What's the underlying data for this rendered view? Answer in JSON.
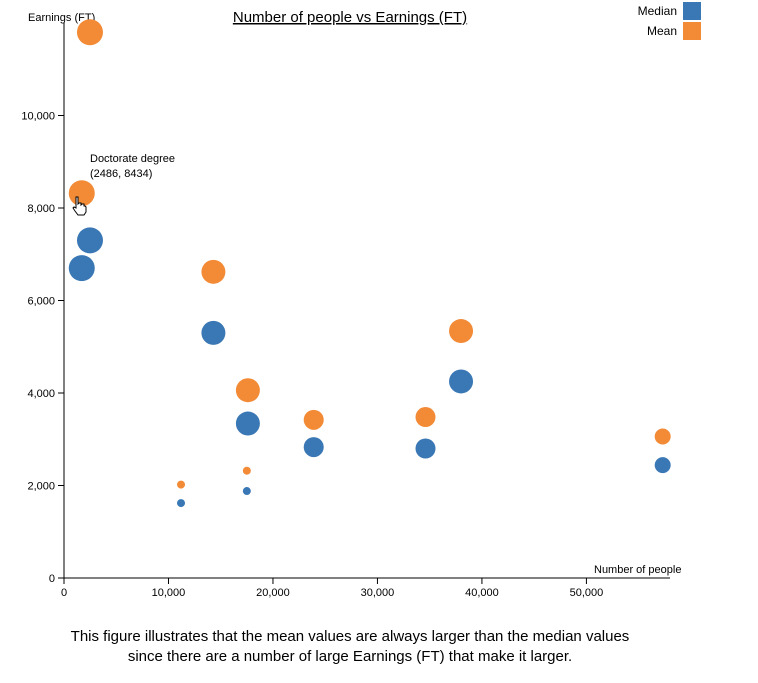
{
  "chart_data": {
    "type": "scatter",
    "title": "Number of people vs Earnings (FT)",
    "xlabel": "Number of people",
    "ylabel": "Earnings (FT)",
    "xlim": [
      0,
      58000
    ],
    "ylim": [
      0,
      12000
    ],
    "x_ticks": [
      0,
      10000,
      20000,
      30000,
      40000,
      50000
    ],
    "x_tick_labels": [
      "0",
      "10,000",
      "20,000",
      "30,000",
      "40,000",
      "50,000"
    ],
    "y_ticks": [
      0,
      2000,
      4000,
      6000,
      8000,
      10000
    ],
    "y_tick_labels": [
      "0",
      "2,000",
      "4,000",
      "6,000",
      "8,000",
      "10,000"
    ],
    "grid": false,
    "legend_position": "top-right",
    "series": [
      {
        "name": "Median",
        "color": "#3a78b5",
        "points": [
          {
            "x": 1700,
            "y": 6700,
            "r": 13
          },
          {
            "x": 2486,
            "y": 7300,
            "r": 13
          },
          {
            "x": 11200,
            "y": 1620,
            "r": 4
          },
          {
            "x": 14300,
            "y": 5300,
            "r": 12
          },
          {
            "x": 17500,
            "y": 1880,
            "r": 4
          },
          {
            "x": 17600,
            "y": 3340,
            "r": 12
          },
          {
            "x": 23900,
            "y": 2830,
            "r": 10
          },
          {
            "x": 34600,
            "y": 2800,
            "r": 10
          },
          {
            "x": 38000,
            "y": 4250,
            "r": 12
          },
          {
            "x": 57300,
            "y": 2440,
            "r": 8
          }
        ]
      },
      {
        "name": "Mean",
        "color": "#f28a36",
        "points": [
          {
            "x": 1700,
            "y": 8320,
            "r": 13
          },
          {
            "x": 2486,
            "y": 11800,
            "r": 13
          },
          {
            "x": 11200,
            "y": 2020,
            "r": 4
          },
          {
            "x": 14300,
            "y": 6620,
            "r": 12
          },
          {
            "x": 17500,
            "y": 2320,
            "r": 4
          },
          {
            "x": 17600,
            "y": 4060,
            "r": 12
          },
          {
            "x": 23900,
            "y": 3420,
            "r": 10
          },
          {
            "x": 34600,
            "y": 3480,
            "r": 10
          },
          {
            "x": 38000,
            "y": 5340,
            "r": 12
          },
          {
            "x": 57300,
            "y": 3060,
            "r": 8
          }
        ]
      }
    ],
    "tooltip": {
      "label": "Doctorate degree",
      "coords": "(2486, 8434)"
    }
  },
  "caption": {
    "line1": "This figure illustrates that the mean values are always larger than the median values",
    "line2": "since there are a number of large Earnings (FT) that make it larger."
  },
  "colors": {
    "median": "#3a78b5",
    "mean": "#f28a36",
    "axis": "#000000"
  }
}
